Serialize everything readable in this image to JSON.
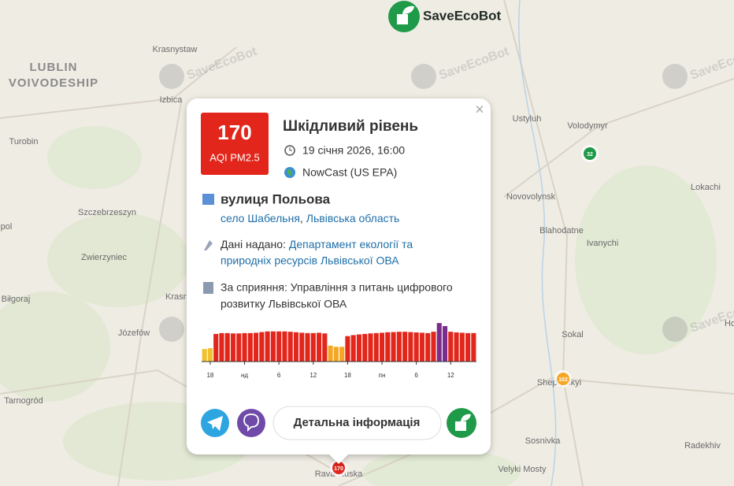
{
  "map": {
    "labels": [
      "Krasnystaw",
      "LUBLIN",
      "VOIVODESHIP",
      "Izbica",
      "Ustyluh",
      "Volodymyr",
      "Turobin",
      "Lokachi",
      "Szczebrzeszyn",
      "Novovolynsk",
      "pol",
      "Blahodatne",
      "Ivanychi",
      "Zwierzyniec",
      "Biłgoraj",
      "Krasn",
      "Józefów",
      "Sokal",
      "Ho",
      "Sheptytskyi",
      "Tarnogród",
      "Sosnivka",
      "Radekhiv",
      "Velyki Mosty",
      "Rava-Ruska"
    ],
    "markers": [
      {
        "label": "32",
        "color": "#1f9a48"
      },
      {
        "label": "102",
        "color": "#f5a623"
      },
      {
        "label": "170",
        "color": "#e3261b"
      }
    ]
  },
  "brand": "SaveEcoBot",
  "watermark": "SaveEcoBot",
  "popup": {
    "close": "×",
    "aqi": "170",
    "aqi_label": "AQI PM2.5",
    "aqi_color": "#e3261b",
    "level": "Шкідливий рівень",
    "datetime": "19 січня 2026, 16:00",
    "method": "NowCast (US EPA)",
    "street": "вулиця Польова",
    "village": "село Шабельня",
    "separator": ",",
    "region": "Львівська область",
    "provider_prefix": "Дані надано:",
    "provider_line1": "Департамент екології та",
    "provider_line2": "природніх ресурсів Львівської ОВА",
    "support_line1": "За сприяння: Управління з питань цифрового",
    "support_line2": "розвитку Львівської ОВА",
    "button": "Детальна інформація"
  },
  "chart_data": {
    "type": "bar",
    "categories": [
      null,
      "18",
      null,
      null,
      null,
      null,
      null,
      "нд",
      null,
      null,
      null,
      null,
      null,
      "6",
      null,
      null,
      null,
      null,
      null,
      "12",
      null,
      null,
      null,
      null,
      null,
      "18",
      null,
      null,
      null,
      null,
      null,
      "пн",
      null,
      null,
      null,
      null,
      null,
      "6",
      null,
      null,
      null,
      null,
      null,
      "12",
      null,
      null,
      null,
      null
    ],
    "values": [
      75,
      80,
      165,
      170,
      170,
      168,
      168,
      170,
      170,
      172,
      176,
      180,
      180,
      180,
      180,
      178,
      175,
      172,
      170,
      170,
      172,
      168,
      95,
      88,
      88,
      152,
      158,
      162,
      165,
      168,
      170,
      172,
      175,
      176,
      178,
      178,
      176,
      174,
      172,
      170,
      178,
      230,
      212,
      178,
      174,
      172,
      170,
      170
    ],
    "colors": [
      "#f2c12e",
      "#f2c12e",
      "#e3261b",
      "#e3261b",
      "#e3261b",
      "#e3261b",
      "#e3261b",
      "#e3261b",
      "#e3261b",
      "#e3261b",
      "#e3261b",
      "#e3261b",
      "#e3261b",
      "#e3261b",
      "#e3261b",
      "#e3261b",
      "#e3261b",
      "#e3261b",
      "#e3261b",
      "#e3261b",
      "#e3261b",
      "#e3261b",
      "#f5a623",
      "#f5a623",
      "#f5a623",
      "#e3261b",
      "#e3261b",
      "#e3261b",
      "#e3261b",
      "#e3261b",
      "#e3261b",
      "#e3261b",
      "#e3261b",
      "#e3261b",
      "#e3261b",
      "#e3261b",
      "#e3261b",
      "#e3261b",
      "#e3261b",
      "#e3261b",
      "#e3261b",
      "#7b2d8e",
      "#7b2d8e",
      "#e3261b",
      "#e3261b",
      "#e3261b",
      "#e3261b",
      "#e3261b"
    ],
    "ylim": [
      0,
      240
    ]
  }
}
